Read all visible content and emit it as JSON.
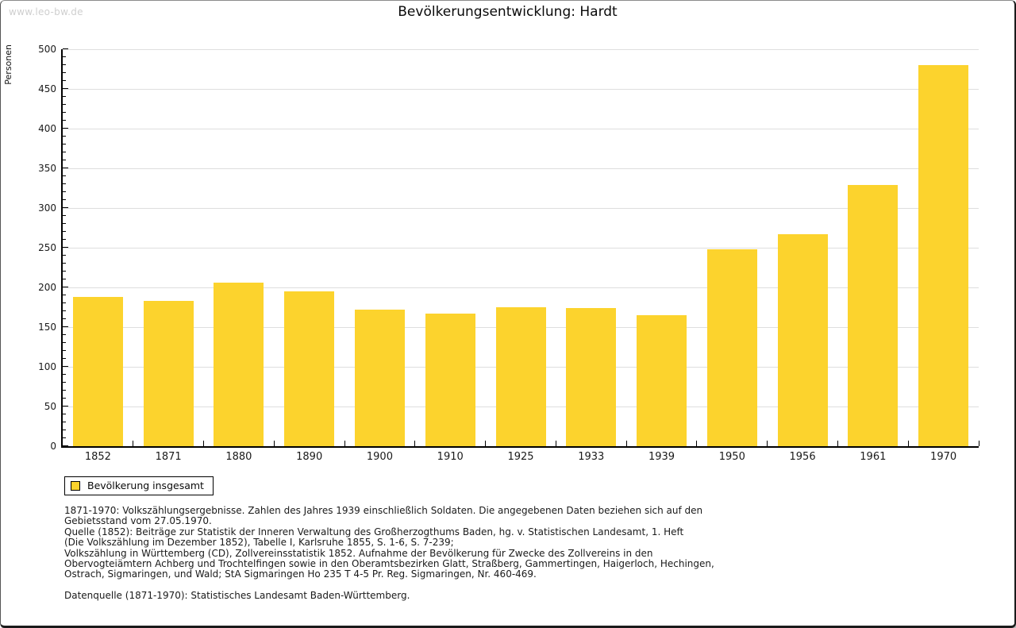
{
  "watermark": "www.leo-bw.de",
  "title": "Bevölkerungsentwicklung: Hardt",
  "colors": {
    "bar": "#FCD32D",
    "grid": "#dedede",
    "axis": "#000000",
    "watermark": "#cfcfcf"
  },
  "chart_data": {
    "type": "bar",
    "title": "Bevölkerungsentwicklung: Hardt",
    "categories": [
      "1852",
      "1871",
      "1880",
      "1890",
      "1900",
      "1910",
      "1925",
      "1933",
      "1939",
      "1950",
      "1956",
      "1961",
      "1970"
    ],
    "values": [
      188,
      183,
      206,
      195,
      172,
      167,
      175,
      174,
      165,
      248,
      267,
      329,
      480
    ],
    "series_name": "Bevölkerung insgesamt",
    "xlabel": "",
    "ylabel": "Personen",
    "ylim": [
      0,
      500
    ],
    "ytick_step": 50,
    "ytick_minor_step": 10,
    "grid": true,
    "legend_position": "bottom-left",
    "bar_color": "#FCD32D"
  },
  "legend": {
    "label": "Bevölkerung insgesamt"
  },
  "footnotes": {
    "lines": [
      "1871-1970: Volkszählungsergebnisse. Zahlen des Jahres 1939 einschließlich Soldaten. Die angegebenen Daten beziehen sich auf den",
      "Gebietsstand vom 27.05.1970.",
      "Quelle (1852): Beiträge zur Statistik der Inneren Verwaltung des Großherzogthums Baden, hg. v. Statistischen Landesamt, 1. Heft",
      "(Die Volkszählung im Dezember 1852), Tabelle I, Karlsruhe 1855, S. 1-6, S. 7-239;",
      "Volkszählung in Württemberg (CD), Zollvereinsstatistik 1852. Aufnahme der Bevölkerung für Zwecke des Zollvereins in den",
      "Obervogteiämtern Achberg und Trochtelfingen sowie in den Oberamtsbezirken Glatt, Straßberg, Gammertingen, Haigerloch, Hechingen,",
      "Ostrach, Sigmaringen, und Wald; StA Sigmaringen Ho 235 T 4-5 Pr. Reg. Sigmaringen, Nr. 460-469."
    ],
    "datasource": "Datenquelle (1871-1970): Statistisches Landesamt Baden-Württemberg."
  }
}
